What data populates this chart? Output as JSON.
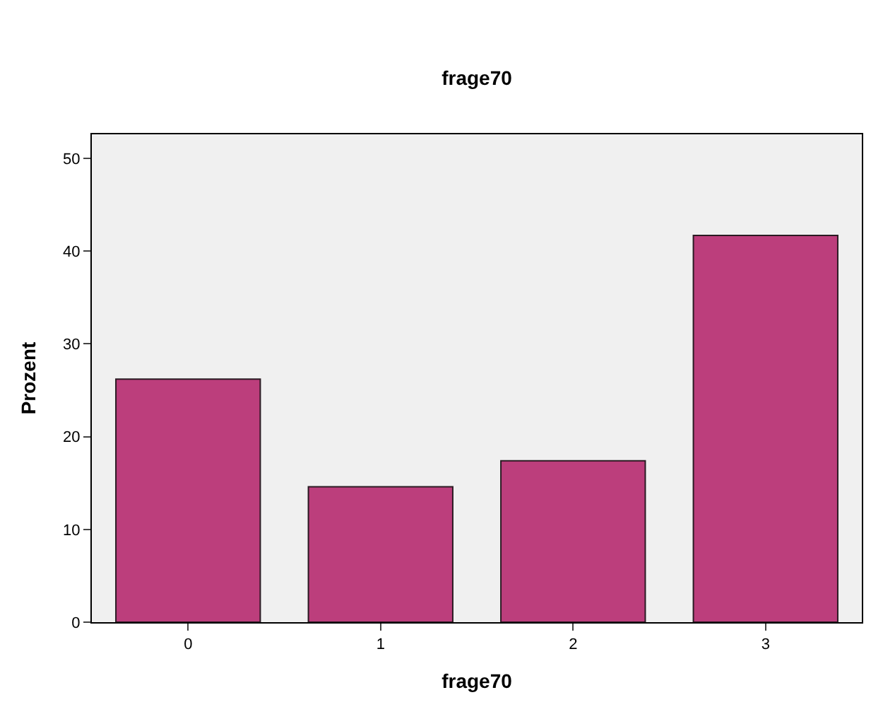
{
  "chart_data": {
    "type": "bar",
    "title": "frage70",
    "xlabel": "frage70",
    "ylabel": "Prozent",
    "categories": [
      "0",
      "1",
      "2",
      "3"
    ],
    "values": [
      26.2,
      14.6,
      17.4,
      41.7
    ],
    "color": "#bc3e7c",
    "ylim": [
      0,
      52.6
    ],
    "yticks": [
      0,
      10,
      20,
      30,
      40,
      50
    ],
    "grid": false,
    "legend": false
  }
}
